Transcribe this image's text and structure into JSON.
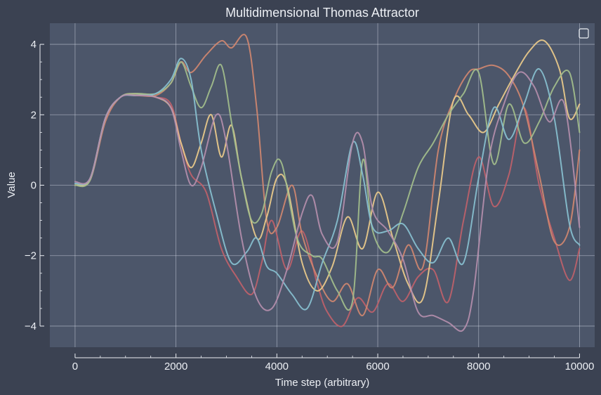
{
  "colors": {
    "background": "#3b4252",
    "plot_background": "#4c566a",
    "grid": "#d8dee9",
    "text": "#eceff4",
    "axis": "#eceff4"
  },
  "chart_data": {
    "type": "line",
    "title": "Multidimensional Thomas Attractor",
    "xlabel": "Time step (arbitrary)",
    "ylabel": "Value",
    "xlim": [
      -500,
      10300
    ],
    "ylim": [
      -4.6,
      4.6
    ],
    "xticks": [
      0,
      2000,
      4000,
      6000,
      8000,
      10000
    ],
    "xtick_labels": [
      "0",
      "2000",
      "4000",
      "6000",
      "8000",
      "10000"
    ],
    "yticks": [
      -4,
      -2,
      0,
      2,
      4
    ],
    "ytick_labels": [
      "−4",
      "−2",
      "0",
      "2",
      "4"
    ],
    "grid": true,
    "legend": "top-right (empty)",
    "series": [
      {
        "color": "#bf616a",
        "x": [
          0,
          300,
          600,
          900,
          1200,
          1600,
          1900,
          2100,
          2300,
          2600,
          2900,
          3200,
          3500,
          3700,
          3900,
          4200,
          4500,
          4800,
          5000,
          5300,
          5600,
          5900,
          6200,
          6500,
          6800,
          7100,
          7400,
          7700,
          8000,
          8300,
          8600,
          8900,
          9200,
          9500,
          9800,
          10000
        ],
        "y": [
          0.0,
          0.2,
          1.9,
          2.5,
          2.55,
          2.5,
          2.3,
          1.2,
          0.3,
          -0.2,
          -1.8,
          -2.6,
          -3.1,
          -2.2,
          -1.0,
          -2.4,
          -1.3,
          -2.8,
          -3.6,
          -4.0,
          -3.2,
          -3.6,
          -2.8,
          -3.3,
          -2.6,
          -2.4,
          -3.3,
          -1.0,
          0.8,
          -0.6,
          0.3,
          2.2,
          0.0,
          -1.5,
          -2.7,
          -1.8
        ]
      },
      {
        "color": "#d08770",
        "x": [
          0,
          300,
          600,
          900,
          1200,
          1600,
          1900,
          2100,
          2300,
          2600,
          2900,
          3100,
          3400,
          3600,
          3800,
          4000,
          4300,
          4500,
          4800,
          5100,
          5400,
          5700,
          6000,
          6300,
          6600,
          6900,
          7200,
          7500,
          7800,
          8000,
          8300,
          8600,
          8900,
          9200,
          9500,
          9800,
          10000
        ],
        "y": [
          0.0,
          0.15,
          1.8,
          2.5,
          2.55,
          2.55,
          2.9,
          3.5,
          3.2,
          3.7,
          4.1,
          3.9,
          4.2,
          2.2,
          -1.0,
          -1.2,
          0.0,
          -1.4,
          -2.6,
          -3.3,
          -2.8,
          -3.7,
          -2.4,
          -2.9,
          -1.7,
          -2.3,
          1.0,
          2.4,
          3.2,
          3.3,
          3.4,
          3.1,
          2.2,
          0.3,
          -1.6,
          -1.2,
          1.0
        ]
      },
      {
        "color": "#ebcb8b",
        "x": [
          0,
          300,
          600,
          900,
          1200,
          1600,
          1900,
          2100,
          2300,
          2500,
          2700,
          2900,
          3100,
          3300,
          3600,
          3800,
          4000,
          4200,
          4500,
          4800,
          5100,
          5400,
          5700,
          6000,
          6300,
          6600,
          6900,
          7200,
          7500,
          7800,
          8100,
          8400,
          8700,
          9000,
          9300,
          9600,
          9800,
          10000
        ],
        "y": [
          0.0,
          0.2,
          1.9,
          2.5,
          2.6,
          2.5,
          2.2,
          1.2,
          0.5,
          1.2,
          2.0,
          0.8,
          1.7,
          0.2,
          -1.5,
          -0.9,
          0.2,
          0.0,
          -2.2,
          -3.0,
          -2.3,
          -0.9,
          -1.8,
          -0.2,
          -1.5,
          -2.8,
          -3.2,
          -0.5,
          2.4,
          2.0,
          1.5,
          2.3,
          3.1,
          3.8,
          4.1,
          3.3,
          1.9,
          2.3
        ]
      },
      {
        "color": "#a3be8c",
        "x": [
          0,
          300,
          600,
          900,
          1200,
          1600,
          1900,
          2100,
          2300,
          2500,
          2700,
          2900,
          3100,
          3300,
          3500,
          3700,
          3900,
          4100,
          4400,
          4700,
          4900,
          5200,
          5500,
          5700,
          5900,
          6200,
          6500,
          6800,
          7100,
          7400,
          7700,
          8000,
          8300,
          8600,
          8900,
          9200,
          9500,
          9800,
          10000
        ],
        "y": [
          0.0,
          0.15,
          1.9,
          2.5,
          2.6,
          2.6,
          2.9,
          3.5,
          2.8,
          2.2,
          2.8,
          3.4,
          1.8,
          0.2,
          -1.0,
          -0.8,
          0.4,
          0.6,
          -1.5,
          -2.0,
          -2.1,
          -3.0,
          -3.3,
          0.7,
          -1.3,
          -1.9,
          -0.8,
          0.5,
          1.2,
          2.0,
          2.6,
          3.2,
          0.6,
          2.3,
          1.2,
          1.8,
          2.8,
          3.2,
          1.5
        ]
      },
      {
        "color": "#88c0d0",
        "x": [
          0,
          300,
          600,
          900,
          1200,
          1600,
          1900,
          2100,
          2300,
          2500,
          2800,
          3100,
          3400,
          3600,
          3800,
          4000,
          4300,
          4600,
          4900,
          5200,
          5500,
          5700,
          5900,
          6200,
          6500,
          6800,
          7100,
          7400,
          7700,
          8000,
          8300,
          8600,
          8900,
          9200,
          9500,
          9800,
          10000
        ],
        "y": [
          0.05,
          0.2,
          1.9,
          2.5,
          2.55,
          2.6,
          3.0,
          3.6,
          3.0,
          1.0,
          -0.8,
          -2.2,
          -1.9,
          -1.5,
          -2.3,
          -2.5,
          -3.1,
          -3.5,
          -2.2,
          -1.0,
          1.2,
          0.3,
          -1.2,
          -1.3,
          -1.1,
          -1.8,
          -2.2,
          -1.5,
          -2.2,
          0.2,
          2.2,
          1.3,
          2.3,
          3.3,
          1.9,
          -1.1,
          -1.7
        ]
      },
      {
        "color": "#b48ead",
        "x": [
          0,
          300,
          600,
          900,
          1200,
          1600,
          1900,
          2100,
          2300,
          2500,
          2800,
          3000,
          3300,
          3600,
          3900,
          4200,
          4500,
          4700,
          4900,
          5200,
          5500,
          5700,
          5900,
          6200,
          6500,
          6800,
          7100,
          7400,
          7700,
          7900,
          8200,
          8500,
          8800,
          9100,
          9400,
          9700,
          10000
        ],
        "y": [
          0.1,
          0.2,
          1.9,
          2.5,
          2.55,
          2.5,
          2.2,
          1.0,
          0.0,
          0.5,
          2.0,
          1.2,
          -1.5,
          -3.2,
          -3.5,
          -2.4,
          -0.8,
          -0.3,
          -1.4,
          -1.6,
          1.2,
          1.2,
          -0.7,
          -1.3,
          -2.1,
          -3.6,
          -3.7,
          -3.9,
          -4.1,
          -3.0,
          0.7,
          2.3,
          3.2,
          2.8,
          1.8,
          2.3,
          -1.2
        ]
      }
    ]
  }
}
